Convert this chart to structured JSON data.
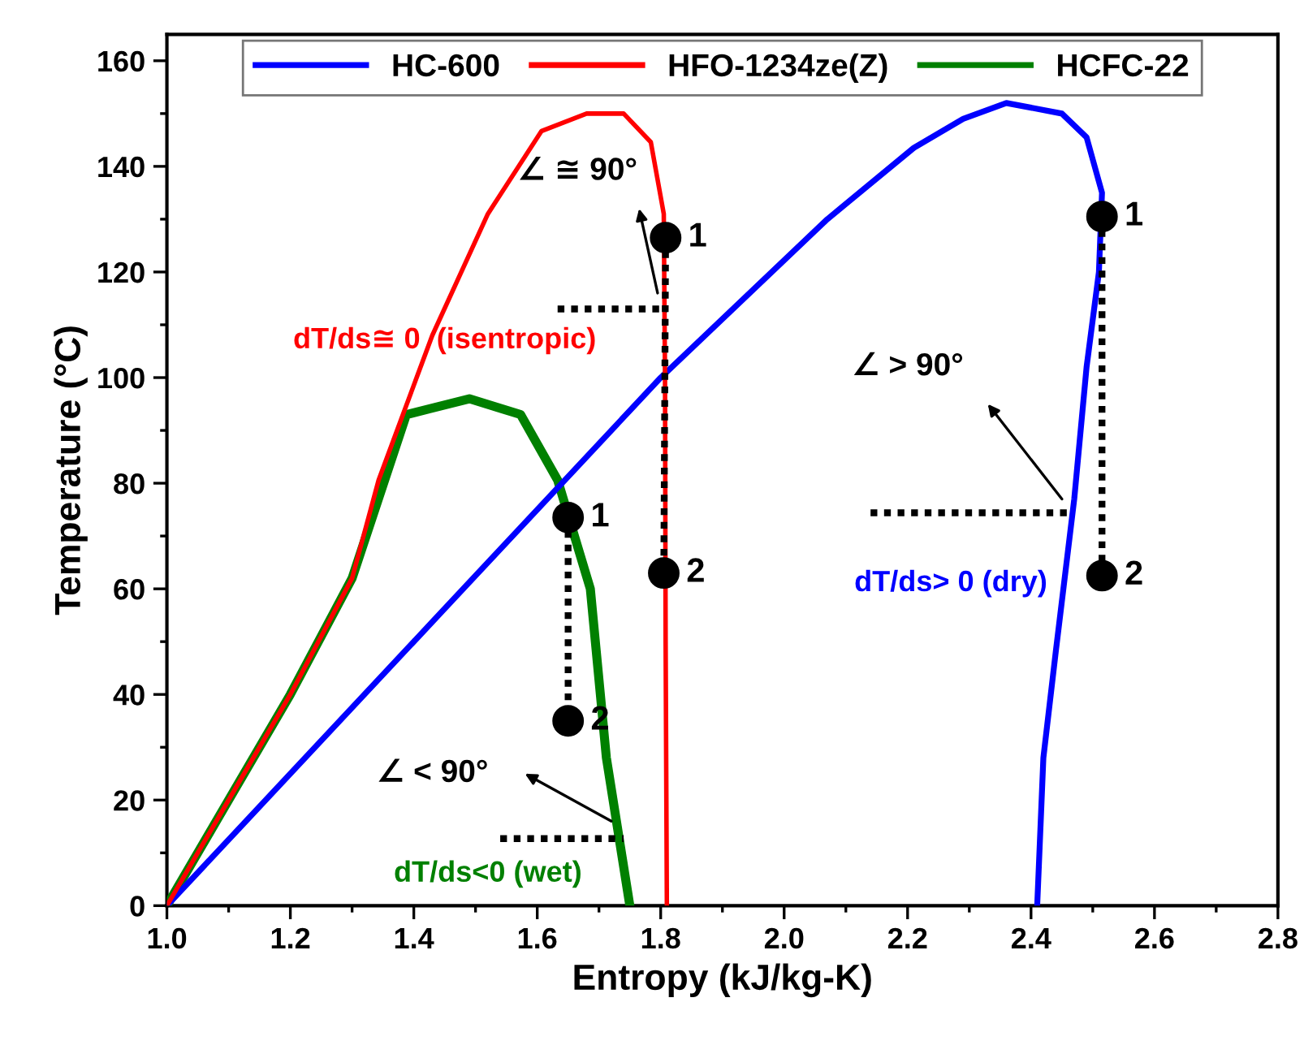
{
  "chart_data": {
    "type": "line",
    "xlabel": "Entropy (kJ/kg-K)",
    "ylabel": "Temperature (°C)",
    "xlim": [
      1.0,
      2.8
    ],
    "ylim": [
      0,
      165
    ],
    "xticks": [
      {
        "value": 1.0,
        "label": "1.0"
      },
      {
        "value": 1.2,
        "label": "1.2"
      },
      {
        "value": 1.4,
        "label": "1.4"
      },
      {
        "value": 1.6,
        "label": "1.6"
      },
      {
        "value": 1.8,
        "label": "1.8"
      },
      {
        "value": 2.0,
        "label": "2.0"
      },
      {
        "value": 2.2,
        "label": "2.2"
      },
      {
        "value": 2.4,
        "label": "2.4"
      },
      {
        "value": 2.6,
        "label": "2.6"
      },
      {
        "value": 2.8,
        "label": "2.8"
      }
    ],
    "yticks": [
      0,
      20,
      40,
      60,
      80,
      100,
      120,
      140,
      160
    ],
    "grid": false,
    "legend": "top",
    "line_style": "solid",
    "marker": "none",
    "series": [
      {
        "name": "HC-600",
        "color": "#0000ff",
        "x": [
          1.0,
          1.4,
          1.8,
          2.07,
          2.21,
          2.29,
          2.36,
          2.45,
          2.49,
          2.515,
          2.51,
          2.49,
          2.47,
          2.44,
          2.42,
          2.41
        ],
        "values": [
          0,
          50,
          100,
          130,
          143.5,
          149,
          152,
          150,
          145.5,
          135,
          120,
          102,
          77,
          48,
          28,
          0
        ]
      },
      {
        "name": "HFO-1234ze(Z)",
        "color": "#ff0000",
        "x": [
          1.0,
          1.1,
          1.2,
          1.3,
          1.343,
          1.43,
          1.52,
          1.607,
          1.68,
          1.74,
          1.784,
          1.805,
          1.807,
          1.808,
          1.81
        ],
        "values": [
          0,
          20,
          40,
          62,
          80.6,
          108,
          131,
          146.7,
          150,
          150,
          144.6,
          131,
          100,
          50,
          0
        ]
      },
      {
        "name": "HCFC-22",
        "color": "#008000",
        "x": [
          1.0,
          1.1,
          1.2,
          1.3,
          1.388,
          1.49,
          1.573,
          1.633,
          1.686,
          1.712,
          1.75
        ],
        "values": [
          0,
          20,
          40,
          62,
          93,
          96,
          93,
          80.6,
          60,
          28,
          0
        ]
      },
      {
        "type": "line",
        "color": "#000000",
        "line_style": "dotted",
        "marker": "circle",
        "x": [
          1.65,
          1.65
        ],
        "values": [
          73.5,
          35
        ]
      },
      {
        "type": "line",
        "color": "#000000",
        "line_style": "dotted",
        "marker": "circle",
        "x": [
          1.808,
          1.805
        ],
        "values": [
          126.5,
          63
        ]
      },
      {
        "type": "line",
        "color": "#000000",
        "line_style": "dotted",
        "marker": "circle",
        "x": [
          2.515,
          2.515
        ],
        "values": [
          130.5,
          62.5
        ]
      },
      {
        "type": "line",
        "color": "#000000",
        "line_style": "dotted",
        "marker": "none",
        "x": [
          1.633,
          1.81
        ],
        "values": [
          113,
          113
        ]
      },
      {
        "type": "line",
        "color": "#000000",
        "line_style": "dotted",
        "marker": "none",
        "x": [
          1.54,
          1.74
        ],
        "values": [
          12.7,
          12.7
        ]
      },
      {
        "type": "line",
        "color": "#000000",
        "line_style": "dotted",
        "marker": "none",
        "x": [
          2.14,
          2.465
        ],
        "values": [
          74.4,
          74.4
        ]
      }
    ],
    "annotations": [
      {
        "text": "1",
        "x": 1.65,
        "y": 73.5
      },
      {
        "text": "2",
        "x": 1.65,
        "y": 35
      },
      {
        "text": "1",
        "x": 1.808,
        "y": 126.5
      },
      {
        "text": "2",
        "x": 1.805,
        "y": 63
      },
      {
        "text": "1",
        "x": 2.515,
        "y": 130.5
      },
      {
        "text": "2",
        "x": 2.515,
        "y": 62.5
      },
      "∠ ≅ 90°",
      "∠ > 90°",
      "∠ < 90°",
      "dT/ds≅ 0  (isentropic)",
      "dT/ds> 0 (dry)",
      "dT/ds<0 (wet)"
    ]
  }
}
